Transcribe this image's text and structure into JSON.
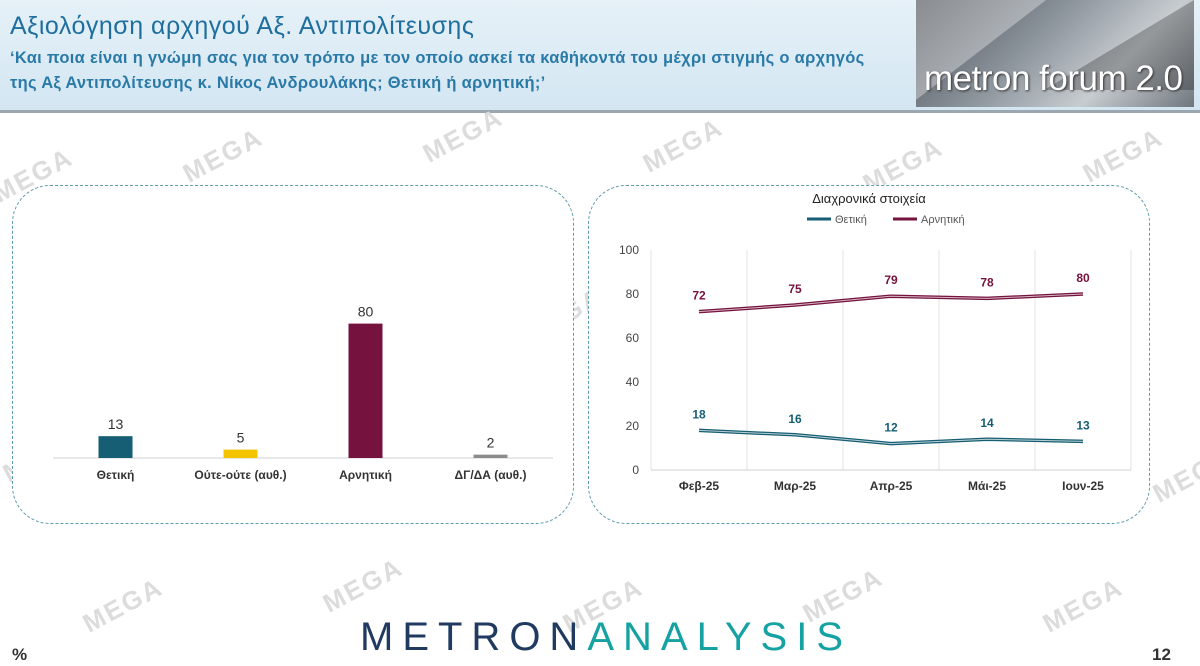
{
  "header": {
    "title": "Αξιολόγηση αρχηγού Αξ. Αντιπολίτευσης",
    "subtitle": "‘Και ποια είναι η γνώμη σας για τον τρόπο με τον οποίο ασκεί τα καθήκοντά του μέχρι στιγμής ο αρχηγός της Αξ Αντιπολίτευσης κ. Νίκος Ανδρουλάκης; Θετική ή αρνητική;’",
    "logo_text": "metron forum 2.0"
  },
  "watermark_text": "MEGA",
  "footer": {
    "brand_part1": "METRON",
    "brand_part2": "ANALYSIS",
    "unit": "%",
    "page_number": "12"
  },
  "colors": {
    "positive": "#165e73",
    "neutral": "#f5c400",
    "negative": "#75123d",
    "dkna": "#8c8c8c"
  },
  "chart_data": [
    {
      "type": "bar",
      "categories": [
        "Θετική",
        "Ούτε-ούτε (αυθ.)",
        "Αρνητική",
        "ΔΓ/ΔΑ (αυθ.)"
      ],
      "values": [
        13,
        5,
        80,
        2
      ],
      "colors": [
        "#165e73",
        "#f5c400",
        "#75123d",
        "#8c8c8c"
      ],
      "ylim": [
        0,
        100
      ]
    },
    {
      "type": "line",
      "title": "Διαχρονικά στοιχεία",
      "categories": [
        "Φεβ-25",
        "Μαρ-25",
        "Απρ-25",
        "Μάι-25",
        "Ιουν-25"
      ],
      "series": [
        {
          "name": "Θετική",
          "values": [
            18,
            16,
            12,
            14,
            13
          ],
          "color": "#165e73"
        },
        {
          "name": "Αρνητική",
          "values": [
            72,
            75,
            79,
            78,
            80
          ],
          "color": "#75123d"
        }
      ],
      "yticks": [
        0,
        20,
        40,
        60,
        80,
        100
      ],
      "ylim": [
        0,
        100
      ],
      "grid": "vertical",
      "legend": "top"
    }
  ]
}
